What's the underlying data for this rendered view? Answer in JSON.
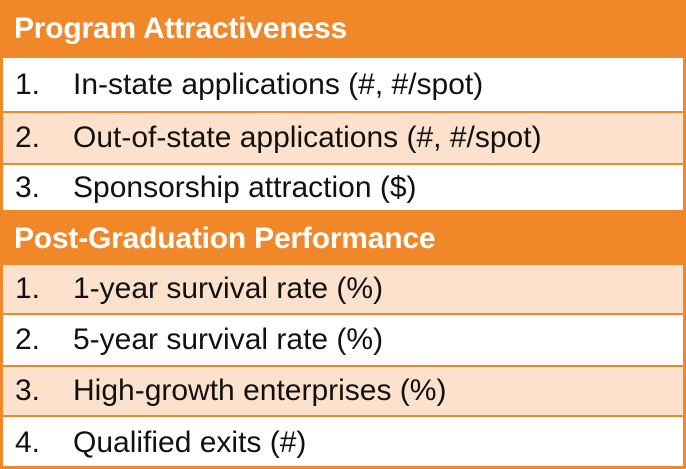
{
  "sections": [
    {
      "title": "Program Attractiveness",
      "items": [
        {
          "num": "1.",
          "text": "In-state applications (#, #/spot)"
        },
        {
          "num": "2.",
          "text": "Out-of-state applications (#, #/spot)"
        },
        {
          "num": "3.",
          "text": "Sponsorship attraction ($)"
        }
      ]
    },
    {
      "title": "Post-Graduation Performance",
      "items": [
        {
          "num": "1.",
          "text": "1-year survival rate (%)"
        },
        {
          "num": "2.",
          "text": "5-year survival rate (%)"
        },
        {
          "num": "3.",
          "text": "High-growth enterprises (%)"
        },
        {
          "num": "4.",
          "text": "Qualified exits (#)"
        }
      ]
    }
  ],
  "colors": {
    "header_bg": "#F0882A",
    "row_shaded": "#FCE2CC",
    "row_plain": "#FFFFFF",
    "border": "#F0882A"
  }
}
